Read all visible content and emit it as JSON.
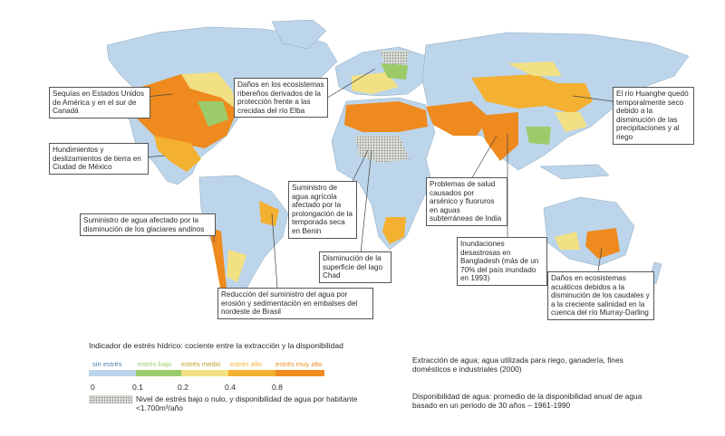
{
  "callouts": [
    {
      "text": "Sequías en Estados Unidos de América y en el sur de Canadá"
    },
    {
      "text": "Hundimientos y deslizamientos de tierra en Ciudad de México"
    },
    {
      "text": "Suministro de agua afectado por la disminución de los glaciares andinos"
    },
    {
      "text": "Reducción del suministro del agua por erosión y sedimentación en embalses del nordeste de Brasil"
    },
    {
      "text": "Daños en los ecosistemas ribereños derivados de la protección frente a las crecidas del río Elba"
    },
    {
      "text": "Suministro de agua agrícola afectado por la prolongación de la temporada seca en Benin"
    },
    {
      "text": "Disminución de la superficie del lago Chad"
    },
    {
      "text": "Problemas de salud causados por arsénico y fluoruros en aguas subterráneas de India"
    },
    {
      "text": "Inundaciones desastrosas en Bangladesh (más de un 70% del país inundado en 1993)"
    },
    {
      "text": "El río Huanghe quedó temporalmente seco debido a la disminución de las precipitaciones y al riego"
    },
    {
      "text": "Daños en ecosistemas acuáticos debidos a la disminución de los caudales y a la creciente salinidad en la cuenca del río Murray-Darling"
    }
  ],
  "legend": {
    "title": "Indicador de estrés hídrico: cociente entre la extracción y la disponibilidad",
    "categories": [
      {
        "label": "sin estrés",
        "color": "#bcd5ea"
      },
      {
        "label": "estrés bajo",
        "color": "#9ccc6a"
      },
      {
        "label": "estrés medio",
        "color": "#f2e084"
      },
      {
        "label": "estrés alto",
        "color": "#f4b030"
      },
      {
        "label": "estrés muy alto",
        "color": "#ee8a1e"
      }
    ],
    "ticks": [
      "0",
      "0.1",
      "0.2",
      "0.4",
      "0.8"
    ],
    "scarcity_note": "Nivel de estrés bajo o nulo, y disponibilidad de agua por habitante <1.700m³/año"
  },
  "notes": {
    "withdrawal": "Extracción de agua; agua utilizada para riego, ganadería, fines domésticos e industriales (2000)",
    "availability": "Disponibilidad de agua: promedio de la disponibilidad anual de agua basado en un periodo de 30 años – 1961-1990"
  }
}
